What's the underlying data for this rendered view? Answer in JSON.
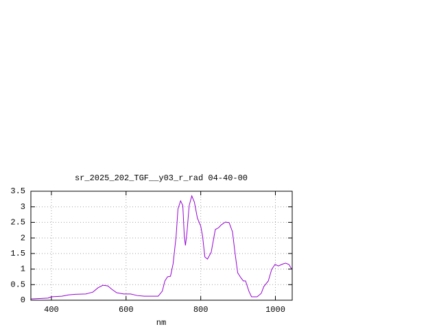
{
  "chart_data": {
    "type": "line",
    "title": "sr_2025_202_TGF__y03_r_rad 04-40-00",
    "x_label": "nm",
    "color": "#9400d3",
    "grid": true,
    "xlim": [
      345,
      1045
    ],
    "ylim": [
      0,
      3.5
    ],
    "xticks": [
      400,
      600,
      800,
      1000
    ],
    "yticks": [
      0,
      0.5,
      1,
      1.5,
      2,
      2.5,
      3,
      3.5
    ],
    "x": [
      345,
      391,
      400,
      428,
      446,
      464,
      492,
      511,
      525,
      538,
      551,
      562,
      575,
      594,
      612,
      630,
      649,
      686,
      697,
      704,
      711,
      719,
      726,
      734,
      739,
      746,
      752,
      756,
      759,
      763,
      769,
      776,
      783,
      791,
      800,
      805,
      811,
      818,
      828,
      839,
      848,
      855,
      866,
      876,
      885,
      892,
      899,
      907,
      914,
      920,
      929,
      936,
      951,
      962,
      969,
      981,
      990,
      999,
      1008,
      1017,
      1027,
      1036,
      1043
    ],
    "values": [
      0.04,
      0.07,
      0.11,
      0.13,
      0.17,
      0.19,
      0.2,
      0.26,
      0.4,
      0.48,
      0.46,
      0.35,
      0.24,
      0.2,
      0.2,
      0.15,
      0.13,
      0.13,
      0.29,
      0.62,
      0.75,
      0.77,
      1.17,
      2.05,
      2.93,
      3.19,
      3.04,
      2.05,
      1.76,
      2.16,
      3.04,
      3.35,
      3.15,
      2.64,
      2.38,
      2.05,
      1.39,
      1.32,
      1.54,
      2.27,
      2.33,
      2.42,
      2.51,
      2.49,
      2.2,
      1.5,
      0.88,
      0.73,
      0.62,
      0.62,
      0.29,
      0.11,
      0.11,
      0.22,
      0.44,
      0.62,
      0.99,
      1.15,
      1.1,
      1.15,
      1.19,
      1.15,
      1.01
    ]
  }
}
